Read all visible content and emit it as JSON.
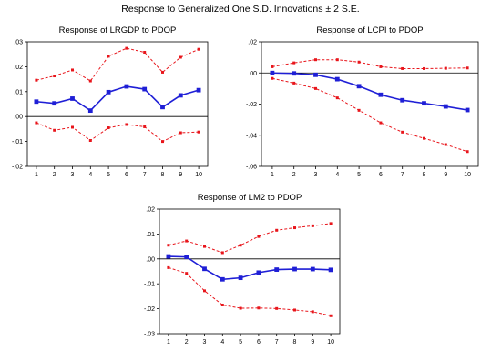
{
  "figure": {
    "title": "Response to Generalized One S.D. Innovations ± 2 S.E."
  },
  "chart_data": [
    {
      "type": "line",
      "title": "Response of LRGDP to PDOP",
      "x": [
        1,
        2,
        3,
        4,
        5,
        6,
        7,
        8,
        9,
        10
      ],
      "xlim": [
        1,
        10
      ],
      "ylim": [
        -0.02,
        0.03
      ],
      "yticks": [
        -0.02,
        -0.01,
        0.0,
        0.01,
        0.02,
        0.03
      ],
      "ytick_labels": [
        "-.02",
        "-.01",
        ".00",
        ".01",
        ".02",
        ".03"
      ],
      "xtick_labels": [
        "1",
        "2",
        "3",
        "4",
        "5",
        "6",
        "7",
        "8",
        "9",
        "10"
      ],
      "grid": false,
      "series": [
        {
          "role": "response",
          "color": "#1f1fd6",
          "style": "solid",
          "values": [
            0.006,
            0.0053,
            0.0072,
            0.0024,
            0.0098,
            0.0121,
            0.011,
            0.0038,
            0.0085,
            0.0106
          ]
        },
        {
          "role": "upper",
          "color": "#e8151b",
          "style": "dashed",
          "values": [
            0.0146,
            0.0163,
            0.0187,
            0.0143,
            0.0242,
            0.0274,
            0.0258,
            0.0178,
            0.0238,
            0.027
          ]
        },
        {
          "role": "lower",
          "color": "#e8151b",
          "style": "dashed",
          "values": [
            -0.0025,
            -0.0055,
            -0.0043,
            -0.0096,
            -0.0045,
            -0.0032,
            -0.0041,
            -0.01,
            -0.0065,
            -0.0062
          ]
        }
      ]
    },
    {
      "type": "line",
      "title": "Response of LCPI to PDOP",
      "x": [
        1,
        2,
        3,
        4,
        5,
        6,
        7,
        8,
        9,
        10
      ],
      "xlim": [
        1,
        10
      ],
      "ylim": [
        -0.06,
        0.02
      ],
      "yticks": [
        -0.06,
        -0.04,
        -0.02,
        0.0,
        0.02
      ],
      "ytick_labels": [
        "-.06",
        "-.04",
        "-.02",
        ".00",
        ".02"
      ],
      "xtick_labels": [
        "1",
        "2",
        "3",
        "4",
        "5",
        "6",
        "7",
        "8",
        "9",
        "10"
      ],
      "grid": false,
      "series": [
        {
          "role": "response",
          "color": "#1f1fd6",
          "style": "solid",
          "values": [
            0.0,
            -0.0003,
            -0.0012,
            -0.004,
            -0.0085,
            -0.014,
            -0.0175,
            -0.0195,
            -0.0215,
            -0.0238
          ]
        },
        {
          "role": "upper",
          "color": "#e8151b",
          "style": "dashed",
          "values": [
            0.004,
            0.0065,
            0.0085,
            0.0085,
            0.007,
            0.004,
            0.0028,
            0.0028,
            0.003,
            0.0032
          ]
        },
        {
          "role": "lower",
          "color": "#e8151b",
          "style": "dashed",
          "values": [
            -0.0035,
            -0.0065,
            -0.01,
            -0.016,
            -0.024,
            -0.032,
            -0.038,
            -0.042,
            -0.046,
            -0.0505
          ]
        }
      ]
    },
    {
      "type": "line",
      "title": "Response of LM2 to PDOP",
      "x": [
        1,
        2,
        3,
        4,
        5,
        6,
        7,
        8,
        9,
        10
      ],
      "xlim": [
        1,
        10
      ],
      "ylim": [
        -0.03,
        0.02
      ],
      "yticks": [
        -0.03,
        -0.02,
        -0.01,
        0.0,
        0.01,
        0.02
      ],
      "ytick_labels": [
        "-.03",
        "-.02",
        "-.01",
        ".00",
        ".01",
        ".02"
      ],
      "xtick_labels": [
        "1",
        "2",
        "3",
        "4",
        "5",
        "6",
        "7",
        "8",
        "9",
        "10"
      ],
      "grid": false,
      "series": [
        {
          "role": "response",
          "color": "#1f1fd6",
          "style": "solid",
          "values": [
            0.001,
            0.0008,
            -0.004,
            -0.0082,
            -0.0076,
            -0.0055,
            -0.0043,
            -0.0041,
            -0.0041,
            -0.0044
          ]
        },
        {
          "role": "upper",
          "color": "#e8151b",
          "style": "dashed",
          "values": [
            0.0055,
            0.0072,
            0.005,
            0.0025,
            0.0055,
            0.009,
            0.0115,
            0.0125,
            0.0133,
            0.0142
          ]
        },
        {
          "role": "lower",
          "color": "#e8151b",
          "style": "dashed",
          "values": [
            -0.0035,
            -0.0058,
            -0.0128,
            -0.0185,
            -0.0198,
            -0.0197,
            -0.0199,
            -0.0205,
            -0.0212,
            -0.0228
          ]
        }
      ]
    }
  ]
}
